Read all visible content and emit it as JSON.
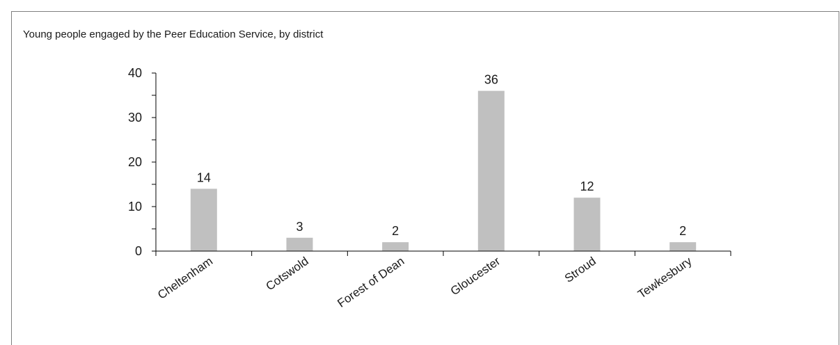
{
  "chart_data": {
    "type": "bar",
    "title": "Young people engaged by the Peer Education Service, by district",
    "categories": [
      "Cheltenham",
      "Cotswold",
      "Forest of Dean",
      "Gloucester",
      "Stroud",
      "Tewkesbury"
    ],
    "values": [
      14,
      3,
      2,
      36,
      12,
      2
    ],
    "data_labels": [
      "14",
      "3",
      "2",
      "36",
      "12",
      "2"
    ],
    "ylim": [
      0,
      40
    ],
    "yticks": [
      0,
      10,
      20,
      30,
      40
    ],
    "ytick_labels": [
      "0",
      "10",
      "20",
      "30",
      "40"
    ],
    "xlabel": "",
    "ylabel": "",
    "grid": false,
    "bar_color": "#c0c0c0",
    "axis_color": "#000000"
  }
}
